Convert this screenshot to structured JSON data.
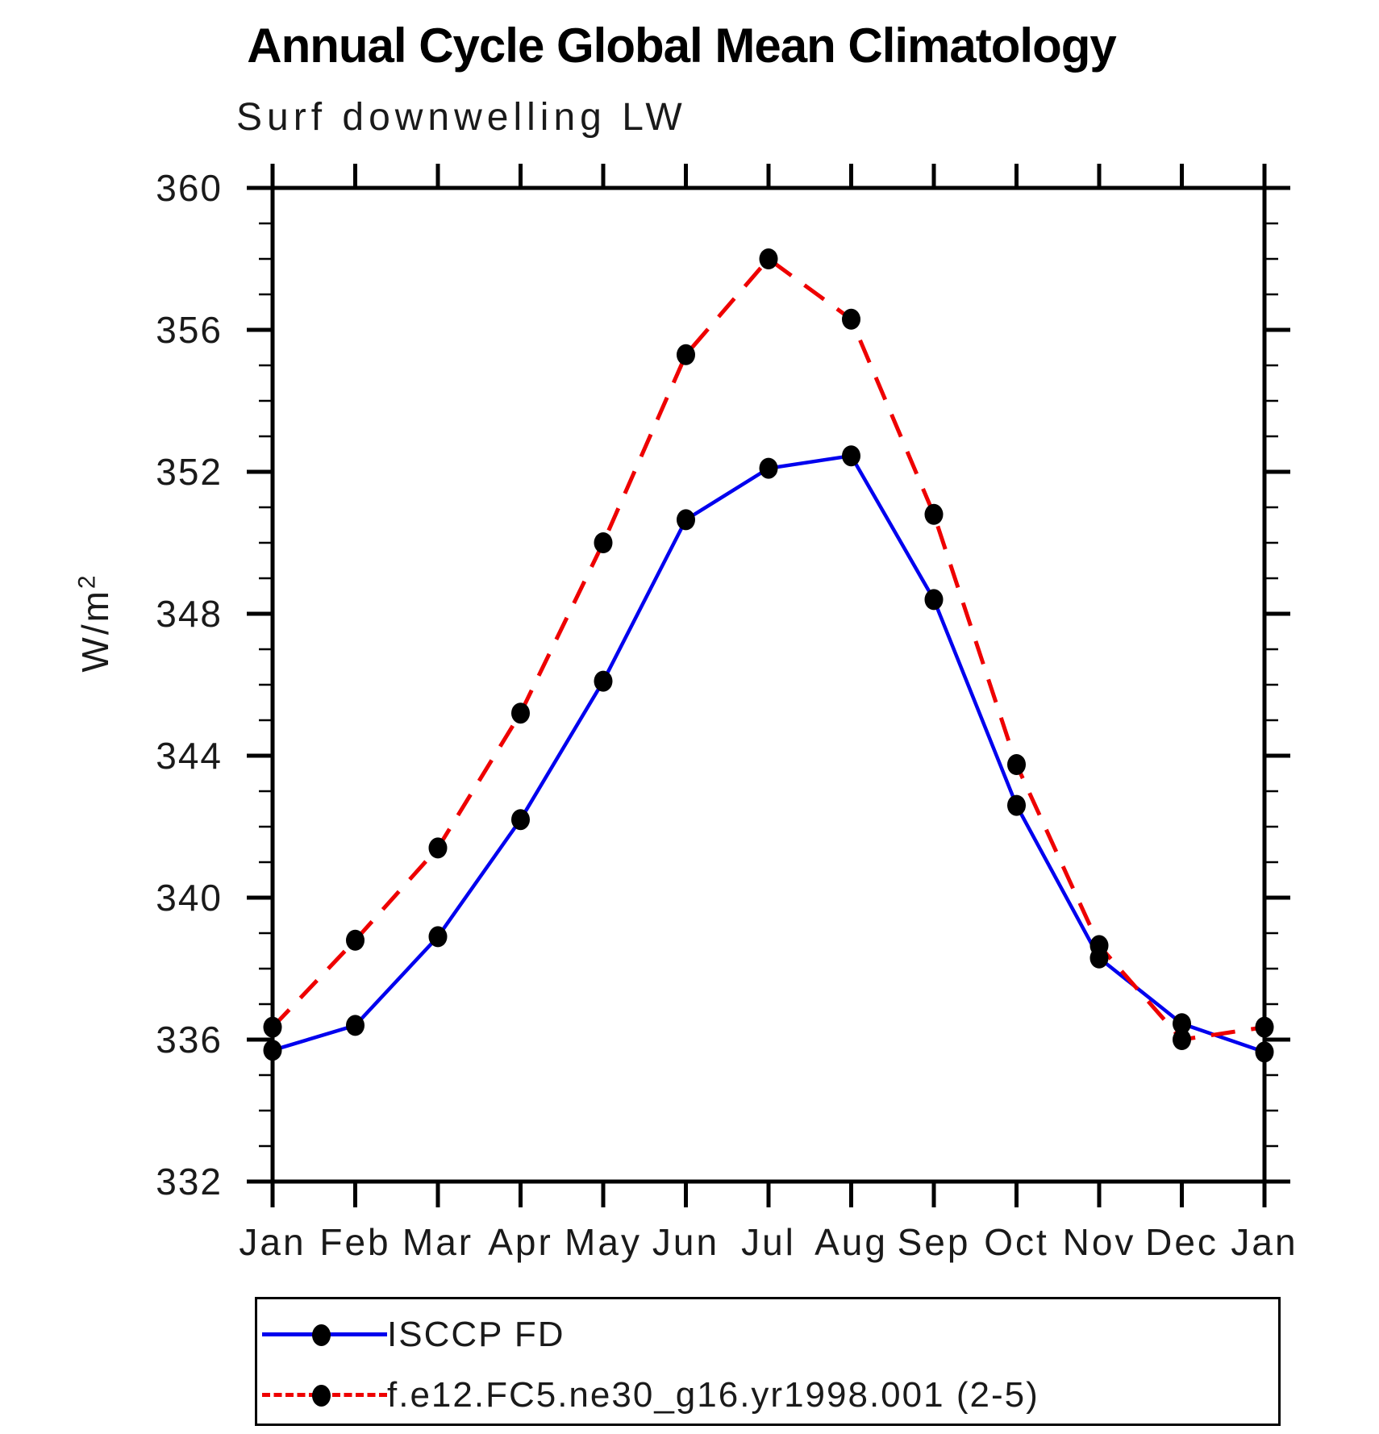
{
  "title": "Annual Cycle Global Mean Climatology",
  "subtitle": "Surf downwelling LW",
  "ylabel": {
    "base": "W/m",
    "sup": "2"
  },
  "chart_data": {
    "type": "line",
    "categories": [
      "Jan",
      "Feb",
      "Mar",
      "Apr",
      "May",
      "Jun",
      "Jul",
      "Aug",
      "Sep",
      "Oct",
      "Nov",
      "Dec",
      "Jan"
    ],
    "series": [
      {
        "name": "ISCCP FD",
        "color": "#0000ee",
        "line_style": "solid",
        "marker": "circle",
        "values": [
          335.7,
          336.4,
          338.9,
          342.2,
          346.1,
          350.65,
          352.1,
          352.45,
          348.4,
          342.6,
          338.3,
          336.45,
          335.65
        ]
      },
      {
        "name": "f.e12.FC5.ne30_g16.yr1998.001 (2-5)",
        "color": "#ee0000",
        "line_style": "dashed",
        "marker": "circle",
        "values": [
          336.35,
          338.8,
          341.4,
          345.2,
          350.0,
          355.3,
          358.0,
          356.3,
          350.8,
          343.75,
          338.65,
          336.0,
          336.35
        ]
      }
    ],
    "ylabel": "W/m2",
    "xlabel": "",
    "ylim": [
      332,
      360
    ],
    "y_major_step": 4,
    "y_minor_step": 1,
    "y_major_tick_labels": [
      "332",
      "336",
      "340",
      "344",
      "348",
      "352",
      "356",
      "360"
    ],
    "grid": false,
    "legend_position": "bottom-left-box",
    "marker_color": "#000000"
  }
}
